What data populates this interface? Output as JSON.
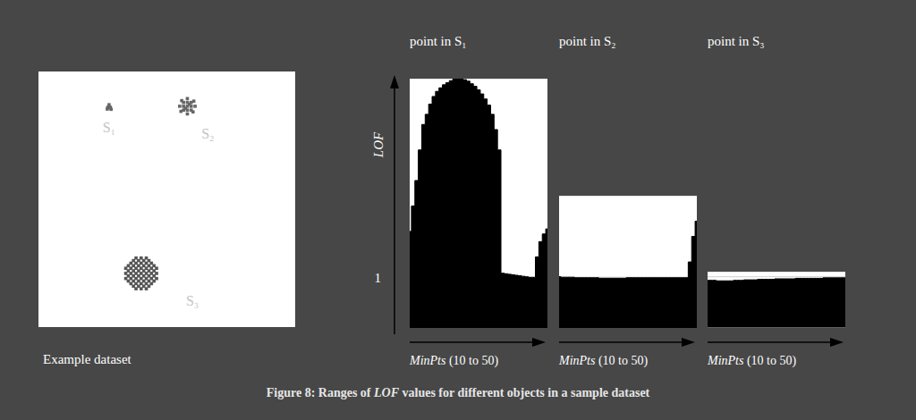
{
  "chart_data": [
    {
      "type": "scatter",
      "title": "Example dataset",
      "xlim": [
        0,
        100
      ],
      "ylim": [
        0,
        100
      ],
      "tick_labels": false,
      "series": [
        {
          "name": "S₁",
          "color": "#666666",
          "x": [
            27,
            28,
            27.5,
            26.8,
            28.3,
            27.5
          ],
          "y": [
            86,
            86,
            87,
            85.3,
            85.2,
            85.8
          ]
        },
        {
          "name": "S₂",
          "color": "#666666",
          "x": [
            58,
            59.5,
            61,
            56.5,
            55,
            58,
            59.5,
            56.5,
            58,
            59.5,
            56.5,
            58,
            58,
            60.5,
            55.5,
            60.2,
            55.8,
            58.8,
            57.2
          ],
          "y": [
            86.4,
            86.4,
            86.4,
            86.4,
            86.4,
            87.9,
            87.9,
            87.9,
            84.9,
            84.9,
            84.9,
            89.4,
            83.4,
            88.4,
            84.4,
            84.2,
            88.6,
            87.2,
            85.6
          ]
        },
        {
          "name": "S₃",
          "color": "#555555",
          "x": [
            34,
            36,
            38,
            40,
            42,
            44,
            46,
            34,
            36,
            38,
            40,
            42,
            44,
            46,
            34,
            36,
            38,
            40,
            42,
            44,
            46,
            36,
            38,
            40,
            42,
            44,
            36,
            38,
            40,
            42,
            44,
            38,
            40,
            42,
            38,
            40,
            42,
            35,
            37,
            39,
            41,
            43,
            45,
            35,
            37,
            39,
            41,
            43,
            45,
            35,
            37,
            39,
            41,
            43,
            45,
            35,
            37,
            39,
            41,
            43,
            45,
            37,
            39,
            41,
            43,
            37,
            39,
            41,
            43
          ],
          "y": [
            21,
            21,
            21,
            21,
            21,
            21,
            21,
            23,
            23,
            23,
            23,
            23,
            23,
            23,
            19,
            19,
            19,
            19,
            19,
            19,
            19,
            25,
            25,
            25,
            25,
            25,
            17,
            17,
            17,
            17,
            17,
            27,
            27,
            27,
            15,
            15,
            15,
            22,
            22,
            22,
            22,
            22,
            22,
            20,
            20,
            20,
            20,
            20,
            20,
            24,
            24,
            24,
            24,
            24,
            24,
            18,
            18,
            18,
            18,
            18,
            18,
            26,
            26,
            26,
            26,
            16,
            16,
            16,
            16
          ]
        }
      ]
    },
    {
      "type": "area",
      "title": "point in S₁",
      "xlabel": "MinPts (10 to 50)",
      "ylabel": "LOF",
      "x": [
        10,
        11,
        12,
        13,
        14,
        15,
        16,
        17,
        18,
        19,
        20,
        21,
        22,
        23,
        24,
        25,
        26,
        27,
        28,
        29,
        30,
        31,
        32,
        33,
        34,
        35,
        36,
        37,
        38,
        39,
        40,
        41,
        42,
        43,
        44,
        45,
        46,
        47,
        48,
        49,
        50
      ],
      "values": [
        1.9,
        2.4,
        2.9,
        3.5,
        4.0,
        4.2,
        4.4,
        4.55,
        4.65,
        4.72,
        4.78,
        4.82,
        4.86,
        4.89,
        4.9,
        4.9,
        4.88,
        4.85,
        4.8,
        4.75,
        4.68,
        4.6,
        4.5,
        4.38,
        4.2,
        3.9,
        3.5,
        1.08,
        1.07,
        1.06,
        1.05,
        1.04,
        1.03,
        1.02,
        1.01,
        1.0,
        1.0,
        1.4,
        1.7,
        1.85,
        1.95
      ],
      "xlim": [
        10,
        50
      ],
      "ylim": [
        0,
        4.9
      ],
      "yticks": [
        1
      ],
      "grid": true,
      "color": "#000000",
      "tick_labels": "y"
    },
    {
      "type": "area",
      "title": "point in S₂",
      "xlabel": "MinPts (10 to 50)",
      "x": [
        10,
        11,
        12,
        13,
        14,
        15,
        16,
        17,
        18,
        19,
        20,
        21,
        22,
        23,
        24,
        25,
        26,
        27,
        28,
        29,
        30,
        31,
        32,
        33,
        34,
        35,
        36,
        37,
        38,
        39,
        40,
        41,
        42,
        43,
        44,
        45,
        46,
        47,
        48,
        49,
        50
      ],
      "values": [
        1.01,
        1.0,
        1.0,
        1.0,
        1.0,
        0.99,
        0.99,
        0.99,
        0.99,
        0.99,
        0.99,
        0.99,
        0.98,
        0.98,
        0.98,
        0.98,
        0.98,
        0.98,
        0.98,
        0.98,
        0.99,
        0.99,
        0.99,
        0.99,
        0.99,
        0.99,
        0.99,
        0.99,
        0.99,
        0.99,
        0.99,
        0.99,
        0.99,
        0.99,
        0.99,
        0.99,
        0.99,
        0.99,
        1.3,
        1.8,
        2.1
      ],
      "xlim": [
        10,
        50
      ],
      "ylim": [
        0,
        2.6
      ],
      "yticks": [
        1
      ],
      "grid": true,
      "color": "#000000",
      "tick_labels": false
    },
    {
      "type": "area",
      "title": "point in S₃",
      "xlabel": "MinPts (10 to 50)",
      "x": [
        10,
        11,
        12,
        13,
        14,
        15,
        16,
        17,
        18,
        19,
        20,
        21,
        22,
        23,
        24,
        25,
        26,
        27,
        28,
        29,
        30,
        31,
        32,
        33,
        34,
        35,
        36,
        37,
        38,
        39,
        40,
        41,
        42,
        43,
        44,
        45,
        46,
        47,
        48,
        49,
        50
      ],
      "values": [
        0.93,
        0.93,
        0.93,
        0.92,
        0.92,
        0.92,
        0.92,
        0.92,
        0.93,
        0.93,
        0.93,
        0.94,
        0.94,
        0.94,
        0.94,
        0.95,
        0.95,
        0.95,
        0.95,
        0.95,
        0.96,
        0.96,
        0.96,
        0.96,
        0.96,
        0.96,
        0.97,
        0.97,
        0.97,
        0.97,
        0.97,
        0.97,
        0.97,
        0.97,
        0.98,
        0.98,
        0.98,
        0.98,
        0.98,
        0.98,
        0.98
      ],
      "xlim": [
        10,
        50
      ],
      "ylim": [
        0,
        1.1
      ],
      "yticks": [
        1
      ],
      "grid": true,
      "color": "#000000",
      "tick_labels": false
    }
  ],
  "caption": "Figure 8: Ranges of LOF values for different objects in a sample dataset"
}
